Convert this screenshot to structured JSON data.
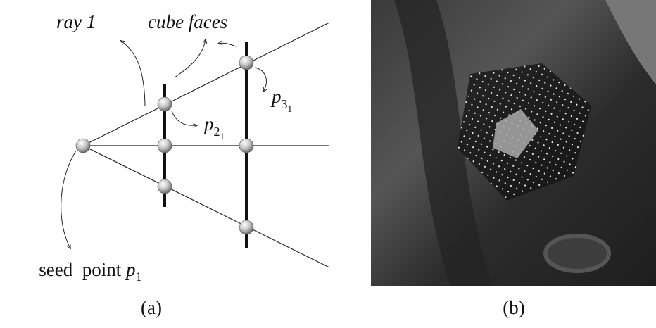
{
  "panel_a": {
    "ray_label": "ray 1",
    "faces_label": "cube faces",
    "p2_label": {
      "base": "p",
      "sub": "2",
      "subsub": "1"
    },
    "p3_label": {
      "base": "p",
      "sub": "3",
      "subsub": "1"
    },
    "seed_label": {
      "text": "seed  point",
      "base": "p",
      "sub": "1"
    },
    "caption": "(a)"
  },
  "panel_b": {
    "caption": "(b)"
  }
}
